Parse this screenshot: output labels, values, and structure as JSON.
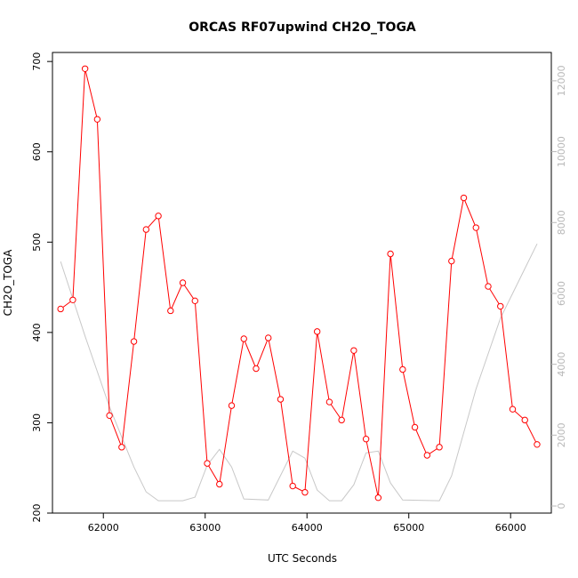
{
  "chart_data": {
    "type": "line",
    "title": "ORCAS RF07upwind CH2O_TOGA",
    "xlabel": "UTC Seconds",
    "ylabel": "CH2O_TOGA",
    "xlim": [
      61500,
      66400
    ],
    "ylim": [
      200,
      710
    ],
    "y2lim": [
      -200,
      12800
    ],
    "x_ticks": [
      62000,
      63000,
      64000,
      65000,
      66000
    ],
    "y_ticks": [
      200,
      300,
      400,
      500,
      600,
      700
    ],
    "y2_ticks": [
      0,
      2000,
      4000,
      6000,
      8000,
      10000,
      12000
    ],
    "grid": false,
    "series": [
      {
        "axis": "left",
        "color": "#ff0000",
        "marker": "open-circle",
        "x": [
          61580,
          61700,
          61820,
          61940,
          62060,
          62180,
          62300,
          62420,
          62540,
          62660,
          62780,
          62900,
          63020,
          63140,
          63260,
          63380,
          63500,
          63620,
          63740,
          63860,
          63980,
          64100,
          64220,
          64340,
          64460,
          64580,
          64700,
          64820,
          64940,
          65060,
          65180,
          65300,
          65420,
          65540,
          65660,
          65780,
          65900,
          66020,
          66140,
          66260
        ],
        "values": [
          426,
          436,
          692,
          636,
          308,
          273,
          390,
          514,
          529,
          424,
          455,
          435,
          255,
          232,
          319,
          393,
          360,
          394,
          326,
          230,
          223,
          401,
          323,
          303,
          380,
          282,
          217,
          487,
          359,
          295,
          264,
          273,
          479,
          549,
          516,
          451,
          429,
          315,
          303,
          276
        ]
      },
      {
        "axis": "right",
        "color": "#c8c8c8",
        "marker": "none",
        "x": [
          61580,
          61820,
          62060,
          62300,
          62420,
          62540,
          62780,
          62900,
          63020,
          63140,
          63260,
          63380,
          63620,
          63860,
          63980,
          64100,
          64220,
          64340,
          64460,
          64580,
          64700,
          64820,
          64940,
          65300,
          65420,
          65660,
          65900,
          66140,
          66260
        ],
        "values": [
          6900,
          4800,
          2800,
          1100,
          400,
          150,
          150,
          250,
          1150,
          1600,
          1100,
          200,
          170,
          1550,
          1350,
          450,
          150,
          150,
          600,
          1500,
          1550,
          650,
          170,
          150,
          850,
          3300,
          5300,
          6700,
          7400
        ]
      }
    ]
  }
}
